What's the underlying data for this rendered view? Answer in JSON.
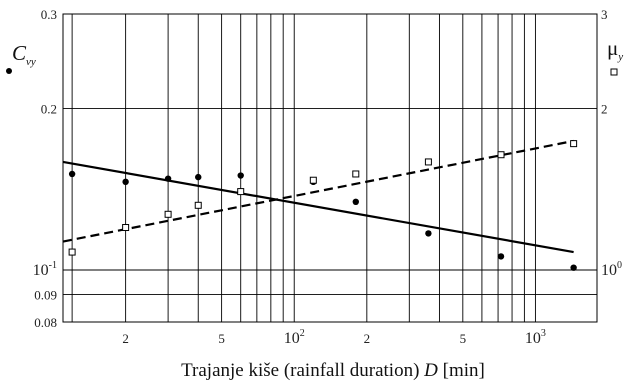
{
  "chart_data": {
    "type": "scatter",
    "xlabel": "Trajanje kiše (rainfall duration) D [min]",
    "xscale": "log",
    "xlim": [
      11,
      1800
    ],
    "left_axis": {
      "label_main": "C",
      "label_sub": "vy",
      "scale": "log",
      "ylim": [
        0.08,
        0.3
      ],
      "ticks": [
        {
          "value": 0.3,
          "label": "0.3",
          "big": false
        },
        {
          "value": 0.2,
          "label": "0.2",
          "big": false
        },
        {
          "value": 0.1,
          "label": "10",
          "sup": "-1",
          "big": true
        },
        {
          "value": 0.09,
          "label": "0.09",
          "big": false
        },
        {
          "value": 0.08,
          "label": "0.08",
          "big": false
        }
      ]
    },
    "right_axis": {
      "label_main": "μ",
      "label_sub": "y",
      "scale": "log",
      "ylim": [
        0.8,
        3
      ],
      "ticks": [
        {
          "value": 3,
          "label": "3",
          "big": false
        },
        {
          "value": 2,
          "label": "2",
          "big": false
        },
        {
          "value": 1,
          "label": "10",
          "sup": "0",
          "big": true
        }
      ]
    },
    "x_tick_labels": [
      {
        "value": 20,
        "label": "2"
      },
      {
        "value": 50,
        "label": "5"
      },
      {
        "value": 100,
        "label": "10",
        "sup": "2"
      },
      {
        "value": 200,
        "label": "2"
      },
      {
        "value": 500,
        "label": "5"
      },
      {
        "value": 1000,
        "label": "10",
        "sup": "3"
      }
    ],
    "x_gridlines": [
      12,
      20,
      30,
      40,
      50,
      60,
      70,
      80,
      90,
      100,
      200,
      300,
      400,
      500,
      600,
      700,
      800,
      900,
      1000
    ],
    "y_gridlines_left": [
      0.08,
      0.09,
      0.1,
      0.2,
      0.3
    ],
    "series": [
      {
        "axis": "left",
        "marker": "filled-circle",
        "x": [
          12,
          20,
          30,
          40,
          60,
          120,
          180,
          360,
          720,
          1440
        ],
        "y": [
          0.151,
          0.146,
          0.148,
          0.149,
          0.15,
          0.146,
          0.134,
          0.117,
          0.106,
          0.101
        ],
        "fit_x": [
          11,
          1440
        ],
        "fit_y": [
          0.159,
          0.108
        ],
        "fit_style": "solid"
      },
      {
        "axis": "right",
        "marker": "open-square",
        "x": [
          12,
          20,
          30,
          40,
          60,
          120,
          180,
          360,
          720,
          1440
        ],
        "y": [
          1.08,
          1.2,
          1.27,
          1.32,
          1.4,
          1.47,
          1.51,
          1.59,
          1.64,
          1.72
        ],
        "fit_x": [
          11,
          1440
        ],
        "fit_y": [
          1.13,
          1.74
        ],
        "fit_style": "dashed"
      }
    ]
  }
}
